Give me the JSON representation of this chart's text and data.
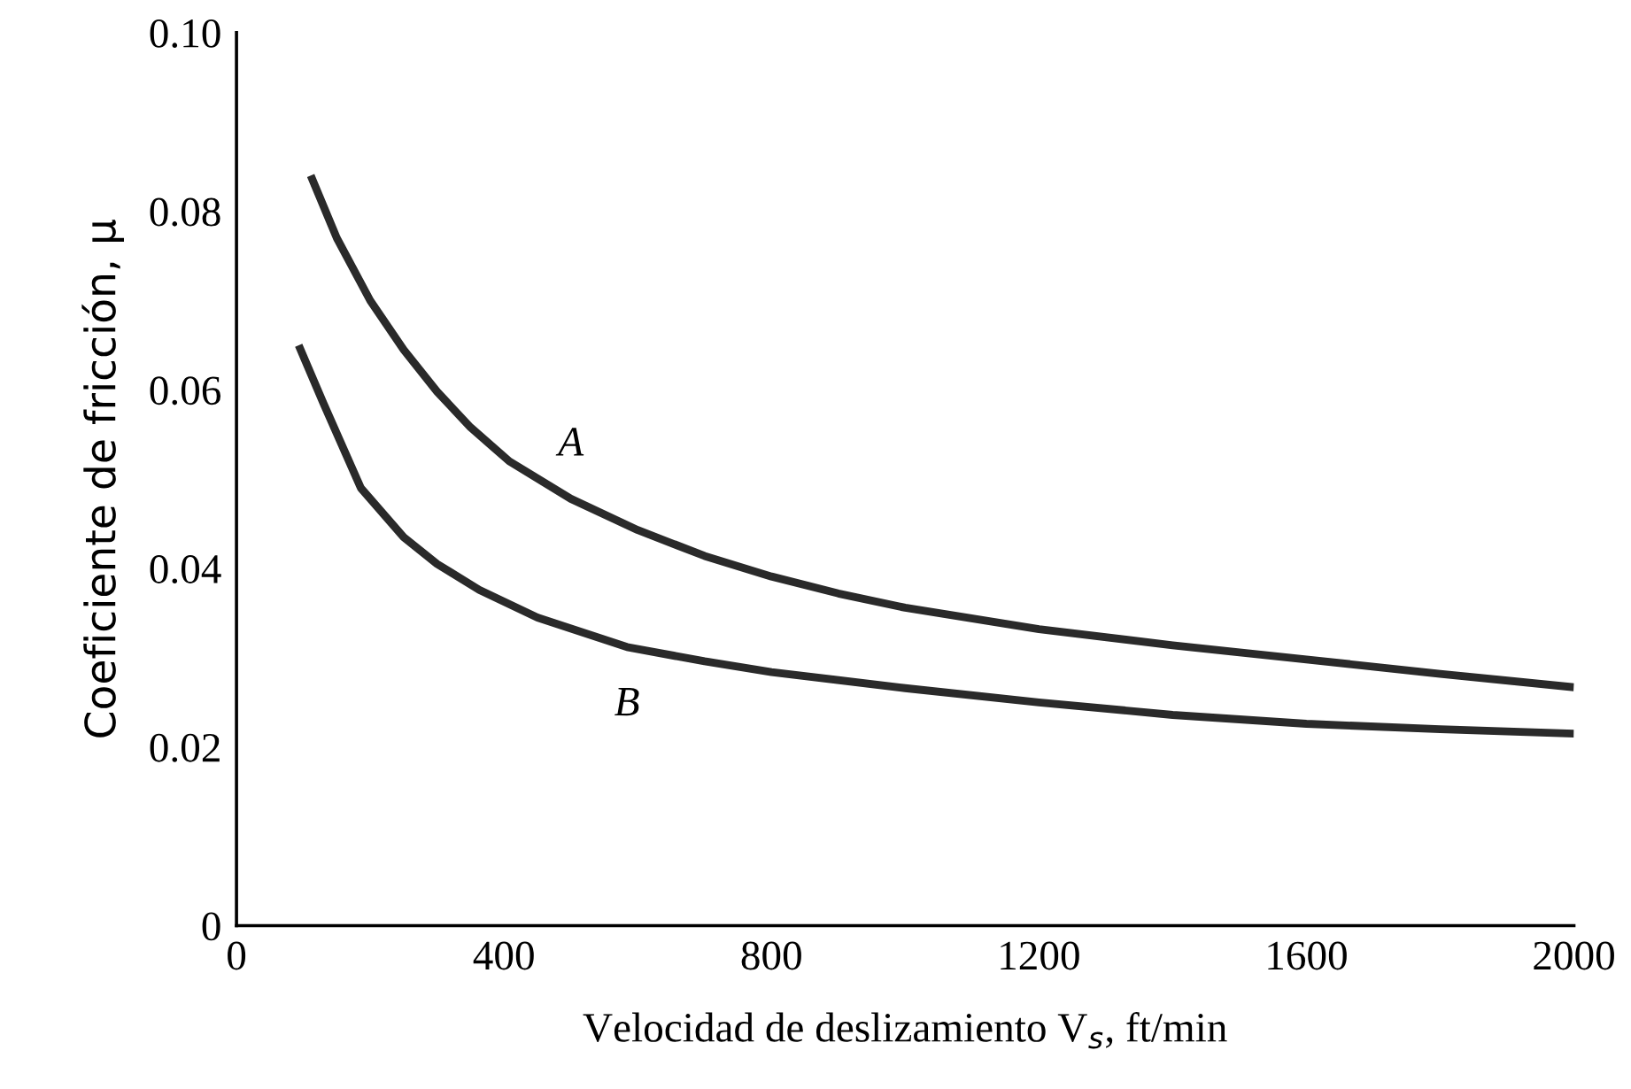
{
  "chart_data": {
    "type": "line",
    "xlabel": "Velocidad de deslizamiento V$_{s}$, ft/min",
    "ylabel": "Coeficiente de fricción, μ",
    "xlim": [
      0,
      2000
    ],
    "xticks": [
      0,
      400,
      800,
      1200,
      1600,
      2000
    ],
    "ylim": [
      0,
      0.1
    ],
    "yticks": [
      0,
      0.02,
      0.04,
      0.06,
      0.08,
      {
        "value": 0.1,
        "label": "0.10"
      }
    ],
    "grid": false,
    "marker": "none",
    "line_style": "solid",
    "series": [
      {
        "name": "A",
        "color": "#2a2a2a",
        "x": [
          111,
          150,
          200,
          250,
          300,
          350,
          408,
          500,
          600,
          700,
          800,
          900,
          1000,
          1200,
          1400,
          1600,
          1800,
          2000
        ],
        "values": [
          0.084,
          0.077,
          0.07,
          0.0645,
          0.0598,
          0.0558,
          0.052,
          0.0478,
          0.0443,
          0.0414,
          0.0391,
          0.0372,
          0.0356,
          0.0332,
          0.0314,
          0.0298,
          0.0282,
          0.0267
        ]
      },
      {
        "name": "B",
        "color": "#2a2a2a",
        "x": [
          93,
          130,
          186,
          250,
          300,
          363,
          450,
          584,
          700,
          800,
          1000,
          1200,
          1400,
          1600,
          1800,
          2000
        ],
        "values": [
          0.065,
          0.0585,
          0.049,
          0.0435,
          0.0405,
          0.0376,
          0.0345,
          0.0312,
          0.0296,
          0.0284,
          0.0266,
          0.025,
          0.0236,
          0.0226,
          0.022,
          0.0215
        ]
      }
    ]
  }
}
